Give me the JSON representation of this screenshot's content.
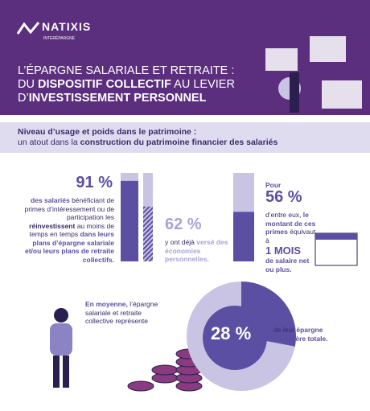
{
  "header": {
    "brand": "NATIXIS",
    "brand_sub": "INTERÉPARGNE",
    "title_line1": "L’ÉPARGNE SALARIALE ET RETRAITE :",
    "title_line2": [
      "DU ",
      "DISPOSITIF COLLECTIF",
      " AU LEVIER"
    ],
    "title_line3": [
      "D’",
      "INVESTISSEMENT PERSONNEL"
    ]
  },
  "banner": {
    "line1": "Niveau d’usage et poids dans le patrimoine :",
    "line2": [
      "un atout dans la ",
      "construction du patrimoine financier des salariés"
    ]
  },
  "stats": [
    {
      "value": 91,
      "label": "91 %",
      "text": [
        "des salariés",
        " bénéficiant de primes d’intéressement ou de participation les ",
        "réinvestissent",
        " au moins de temps en temps ",
        "dans leurs plans d’épargne salariale et/ou leurs plans de retraite collectifs."
      ]
    },
    {
      "value": 62,
      "label": "62 %",
      "text": [
        "y ont déjà ",
        "versé des économies personnelles."
      ]
    },
    {
      "value": 56,
      "label": "56 %",
      "intro": "Pour",
      "text": [
        "d’entre eux, ",
        "le montant de ces primes",
        " équivaut à",
        "1 MOIS",
        "de salaire net ou plus."
      ]
    },
    {
      "value": 28,
      "label": "28 %",
      "intro": [
        "En moyenne,",
        " l’épargne salariale et retraite collective représente"
      ],
      "text": [
        "de leur ",
        "épargne financière totale."
      ]
    }
  ]
}
